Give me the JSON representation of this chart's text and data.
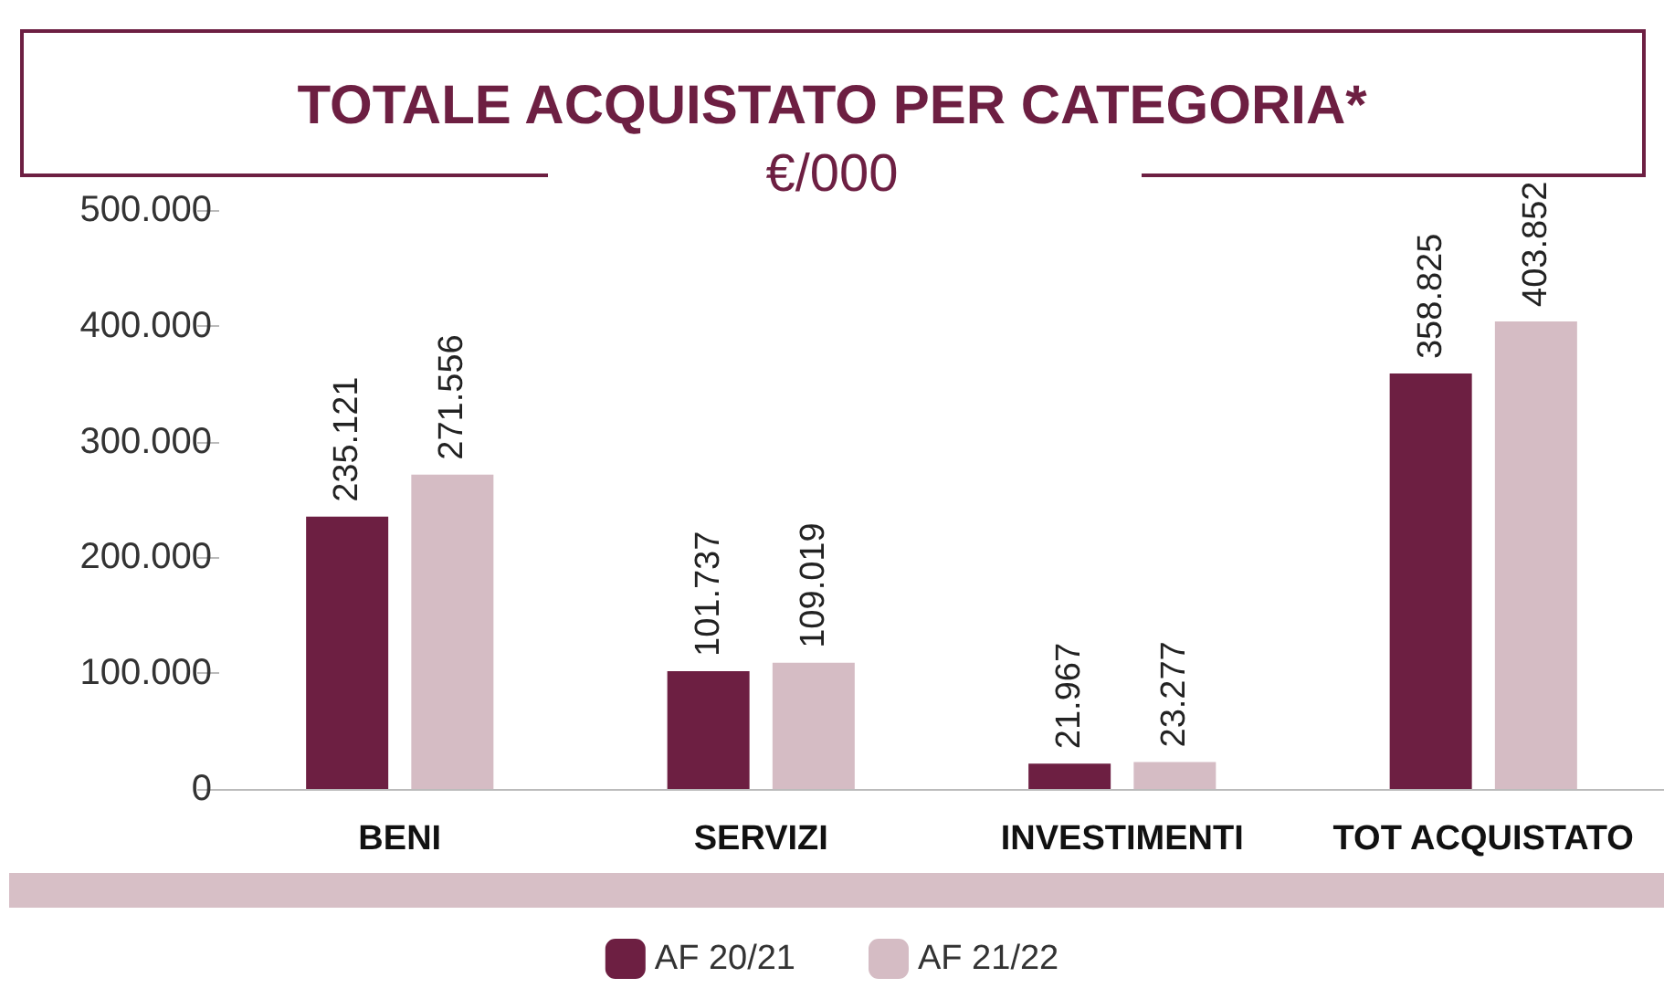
{
  "chart_data": {
    "type": "bar",
    "title": "TOTALE ACQUISTATO PER CATEGORIA*",
    "subtitle": "€/000",
    "categories": [
      "BENI",
      "SERVIZI",
      "INVESTIMENTI",
      "TOT ACQUISTATO"
    ],
    "series": [
      {
        "name": "AF 20/21",
        "color": "#6d1f42",
        "values": [
          235121,
          101737,
          21967,
          358825
        ],
        "value_labels": [
          "235.121",
          "101.737",
          "21.967",
          "358.825"
        ]
      },
      {
        "name": "AF 21/22",
        "color": "#d5bcc4",
        "values": [
          271556,
          109019,
          23277,
          403852
        ],
        "value_labels": [
          "271.556",
          "109.019",
          "23.277",
          "403.852"
        ]
      }
    ],
    "ylim": [
      0,
      500000
    ],
    "yticks": [
      {
        "value": 0,
        "label": "0"
      },
      {
        "value": 100000,
        "label": "100.000"
      },
      {
        "value": 200000,
        "label": "200.000"
      },
      {
        "value": 300000,
        "label": "300.000"
      },
      {
        "value": 400000,
        "label": "400.000"
      },
      {
        "value": 500000,
        "label": "500.000"
      }
    ],
    "legend": "bottom"
  }
}
